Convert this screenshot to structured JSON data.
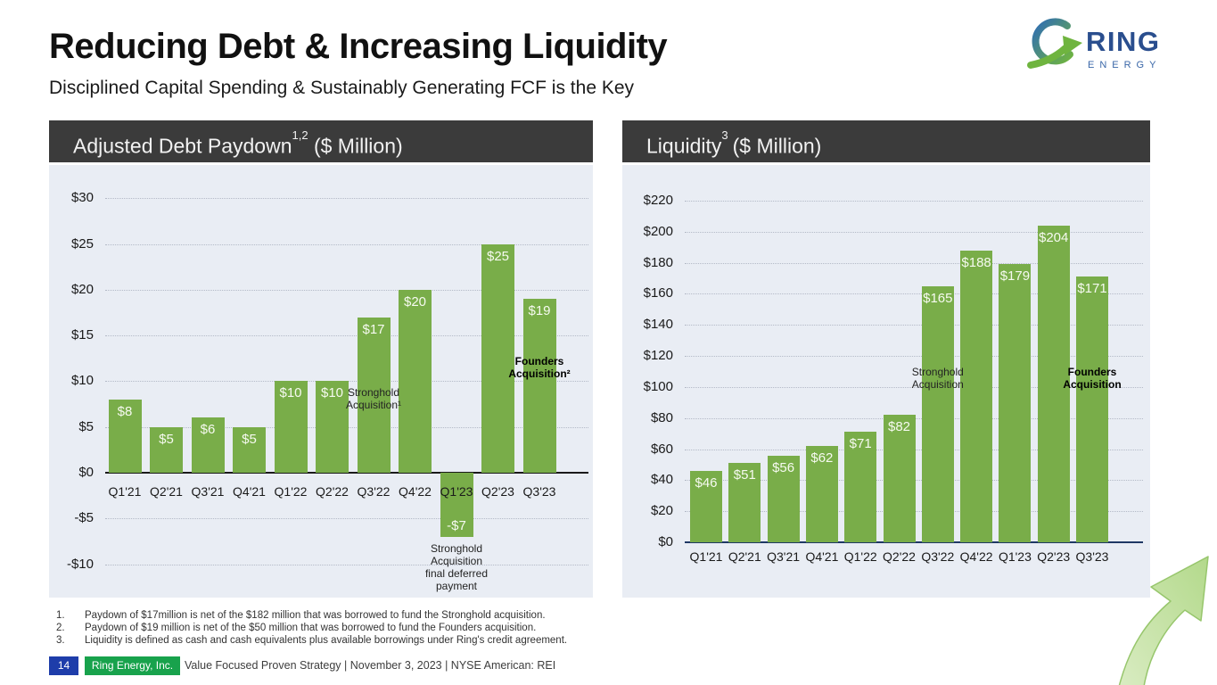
{
  "slide": {
    "title": "Reducing Debt & Increasing Liquidity",
    "subtitle": "Disciplined Capital Spending & Sustainably Generating FCF is the Key"
  },
  "logo": {
    "word1": "RING",
    "word2": "ENERGY"
  },
  "charts": {
    "debt": {
      "header": {
        "title": "Adjusted Debt Paydown",
        "sup": "1,2",
        "rest": " ($ Million)"
      }
    },
    "liquidity": {
      "header": {
        "title": "Liquidity",
        "sup": "3",
        "rest": "($ Million)"
      }
    }
  },
  "chart_data": [
    {
      "id": "debt",
      "type": "bar",
      "title": "Adjusted Debt Paydown ($ Million)",
      "xlabel": "",
      "ylabel": "",
      "categories": [
        "Q1'21",
        "Q2'21",
        "Q3'21",
        "Q4'21",
        "Q1'22",
        "Q2'22",
        "Q3'22",
        "Q4'22",
        "Q1'23",
        "Q2'23",
        "Q3'23"
      ],
      "values": [
        8,
        5,
        6,
        5,
        10,
        10,
        17,
        20,
        -7,
        25,
        19
      ],
      "bar_labels": [
        "$8",
        "$5",
        "$6",
        "$5",
        "$10",
        "$10",
        "$17",
        "$20",
        "-$7",
        "$25",
        "$19"
      ],
      "ylim": [
        -10,
        30
      ],
      "ytick_step": 5,
      "grid": "dotted",
      "legend": "none",
      "bar_color": "#79ad49",
      "annotations": [
        {
          "lines": "Stronghold\nAcquisition¹",
          "bold": false,
          "category": "Q3'22",
          "value": 9.5
        },
        {
          "lines": "Founders\nAcquisition²",
          "bold": true,
          "category": "Q3'23",
          "value": 12.9
        },
        {
          "lines": "Stronghold\nAcquisition\nfinal deferred\npayment",
          "bold": false,
          "category": "Q1'23",
          "value": -7.6
        }
      ]
    },
    {
      "id": "liquidity",
      "type": "bar",
      "title": "Liquidity ($ Million)",
      "xlabel": "",
      "ylabel": "",
      "categories": [
        "Q1'21",
        "Q2'21",
        "Q3'21",
        "Q4'21",
        "Q1'22",
        "Q2'22",
        "Q3'22",
        "Q4'22",
        "Q1'23",
        "Q2'23",
        "Q3'23"
      ],
      "values": [
        46,
        51,
        56,
        62,
        71,
        82,
        165,
        188,
        179,
        204,
        171
      ],
      "bar_labels": [
        "$46",
        "$51",
        "$56",
        "$62",
        "$71",
        "$82",
        "$165",
        "$188",
        "$179",
        "$204",
        "$171"
      ],
      "ylim": [
        0,
        220
      ],
      "ytick_step": 20,
      "grid": "dotted",
      "legend": "none",
      "bar_color": "#79ad49",
      "annotations": [
        {
          "lines": "Stronghold\nAcquisition",
          "bold": false,
          "category": "Q3'22",
          "value": 114
        },
        {
          "lines": "Founders\nAcquisition",
          "bold": true,
          "category": "Q3'23",
          "value": 114
        }
      ]
    }
  ],
  "footnotes": [
    {
      "num": "1.",
      "text": "Paydown of $17million is net of the $182 million that was borrowed to fund the Stronghold acquisition."
    },
    {
      "num": "2.",
      "text": "Paydown of $19 million is net of the $50 million that was borrowed to fund the Founders acquisition."
    },
    {
      "num": "3.",
      "text": "Liquidity is defined as cash and cash equivalents plus available borrowings under Ring's credit agreement."
    }
  ],
  "footer": {
    "page": "14",
    "company": "Ring Energy, Inc.",
    "tagline": "Value Focused Proven Strategy  | November 3, 2023 |  NYSE American: REI"
  },
  "colors": {
    "bar_green": "#79ad49",
    "panel_header_bg": "#3b3b3b",
    "panel_body_bg": "#e9edf4",
    "debt_axis": "#1a1a1a",
    "liquidity_axis": "#1f3864",
    "footer_page_bg": "#1e3daa",
    "footer_company_bg": "#18a24c"
  }
}
